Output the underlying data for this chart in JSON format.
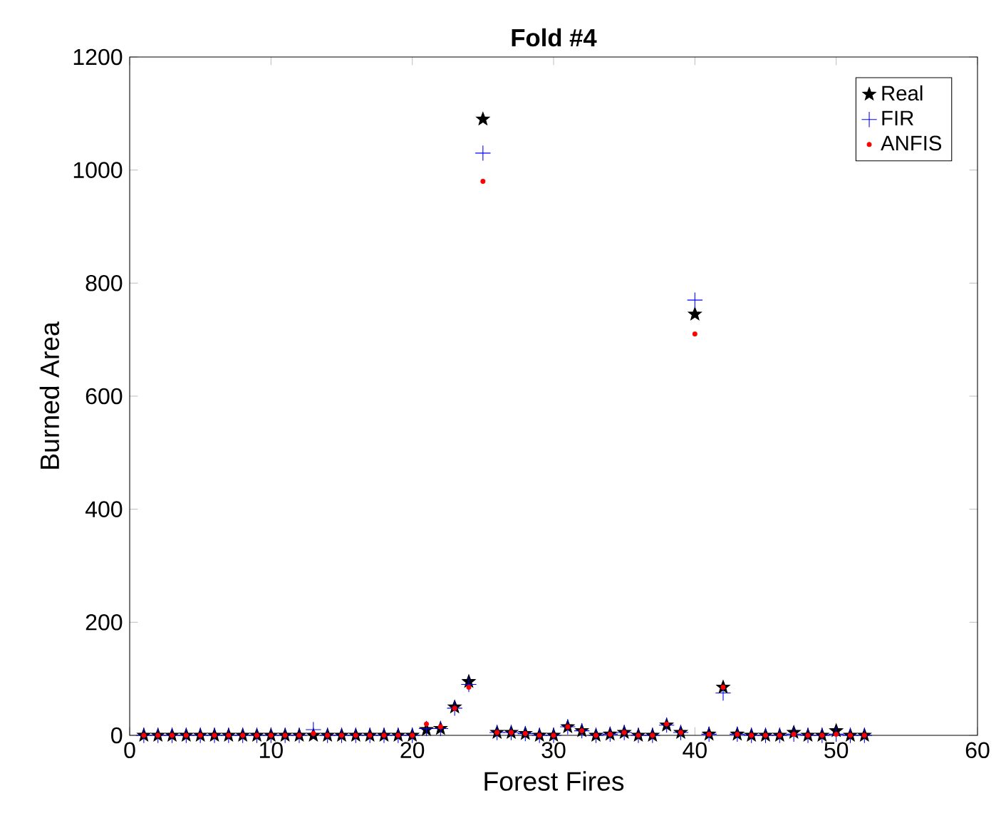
{
  "chart_data": {
    "type": "scatter",
    "title": "Fold #4",
    "xlabel": "Forest Fires",
    "ylabel": "Burned Area",
    "x": [
      1,
      2,
      3,
      4,
      5,
      6,
      7,
      8,
      9,
      10,
      11,
      12,
      13,
      14,
      15,
      16,
      17,
      18,
      19,
      20,
      21,
      22,
      23,
      24,
      25,
      26,
      27,
      28,
      29,
      30,
      31,
      32,
      33,
      34,
      35,
      36,
      37,
      38,
      39,
      40,
      41,
      42,
      43,
      44,
      45,
      46,
      47,
      48,
      49,
      50,
      51,
      52
    ],
    "xlim": [
      0,
      60
    ],
    "xticks": [
      0,
      10,
      20,
      30,
      40,
      50,
      60
    ],
    "ylim": [
      0,
      1200
    ],
    "yticks": [
      0,
      200,
      400,
      600,
      800,
      1000,
      1200
    ],
    "legend": "top right",
    "grid": false,
    "series": [
      {
        "name": "Real",
        "color": "#000000",
        "marker": "star",
        "values": [
          0,
          0,
          0,
          0,
          0,
          0,
          0,
          0,
          0,
          0,
          0,
          0,
          0,
          0,
          0,
          0,
          0,
          0,
          0,
          0,
          10,
          12,
          50,
          95,
          1090,
          5,
          5,
          3,
          0,
          0,
          15,
          8,
          0,
          2,
          5,
          0,
          0,
          18,
          5,
          745,
          2,
          85,
          2,
          0,
          0,
          0,
          5,
          0,
          0,
          8,
          0,
          0
        ]
      },
      {
        "name": "FIR",
        "color": "#0000ff",
        "marker": "cross",
        "values": [
          0,
          0,
          0,
          0,
          0,
          0,
          0,
          0,
          0,
          0,
          0,
          0,
          10,
          0,
          0,
          0,
          0,
          0,
          0,
          0,
          12,
          12,
          48,
          90,
          1030,
          5,
          5,
          3,
          0,
          0,
          15,
          8,
          0,
          2,
          5,
          0,
          0,
          18,
          5,
          770,
          2,
          75,
          2,
          0,
          0,
          0,
          2,
          0,
          0,
          2,
          0,
          0
        ]
      },
      {
        "name": "ANFIS",
        "color": "#ff0000",
        "marker": "circle",
        "values": [
          0,
          0,
          0,
          0,
          0,
          0,
          0,
          0,
          0,
          0,
          0,
          0,
          3,
          0,
          0,
          0,
          0,
          0,
          0,
          0,
          20,
          15,
          48,
          85,
          980,
          5,
          5,
          3,
          0,
          0,
          15,
          8,
          0,
          2,
          5,
          0,
          0,
          20,
          5,
          710,
          2,
          85,
          2,
          0,
          0,
          0,
          2,
          0,
          0,
          2,
          0,
          0
        ]
      }
    ]
  }
}
